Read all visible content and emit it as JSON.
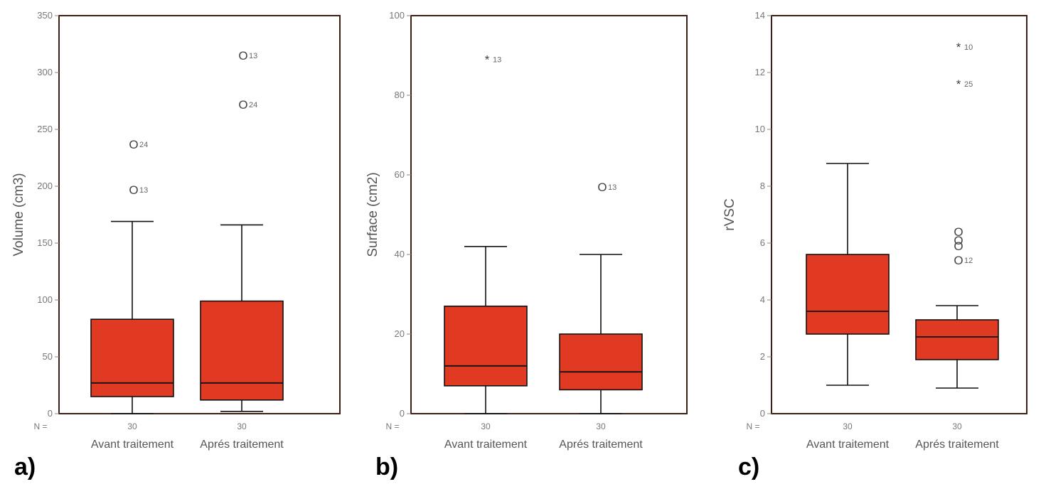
{
  "colors": {
    "box_fill": "#e03a22",
    "frame": "#3d1f14",
    "line": "#111111"
  },
  "chart_data": [
    {
      "type": "boxplot",
      "panel_label": "a)",
      "ylabel": "Volume (cm3)",
      "ylim": [
        0,
        350
      ],
      "yticks": [
        0,
        50,
        100,
        150,
        200,
        250,
        300,
        350
      ],
      "n_label": "N =",
      "categories": [
        "Avant traitement",
        "Aprés traitement"
      ],
      "boxes": [
        {
          "n": "30",
          "whisker_low": 0,
          "q1": 15,
          "median": 27,
          "q3": 83,
          "whisker_high": 169,
          "outliers": [
            {
              "value": 237,
              "label": "24",
              "marker": "O"
            },
            {
              "value": 197,
              "label": "13",
              "marker": "O"
            }
          ]
        },
        {
          "n": "30",
          "whisker_low": 2,
          "q1": 12,
          "median": 27,
          "q3": 99,
          "whisker_high": 166,
          "outliers": [
            {
              "value": 315,
              "label": "13",
              "marker": "O"
            },
            {
              "value": 272,
              "label": "24",
              "marker": "O"
            }
          ]
        }
      ]
    },
    {
      "type": "boxplot",
      "panel_label": "b)",
      "ylabel": "Surface (cm2)",
      "ylim": [
        0,
        100
      ],
      "yticks": [
        0,
        20,
        40,
        60,
        80,
        100
      ],
      "n_label": "N =",
      "categories": [
        "Avant traitement",
        "Aprés traitement"
      ],
      "boxes": [
        {
          "n": "30",
          "whisker_low": 0,
          "q1": 7,
          "median": 12,
          "q3": 27,
          "whisker_high": 42,
          "outliers": [
            {
              "value": 89,
              "label": "13",
              "marker": "*"
            }
          ]
        },
        {
          "n": "30",
          "whisker_low": 0,
          "q1": 6,
          "median": 10.5,
          "q3": 20,
          "whisker_high": 40,
          "outliers": [
            {
              "value": 57,
              "label": "13",
              "marker": "O"
            }
          ]
        }
      ]
    },
    {
      "type": "boxplot",
      "panel_label": "c)",
      "ylabel": "rVSC",
      "ylim": [
        0,
        14
      ],
      "yticks": [
        0,
        2,
        4,
        6,
        8,
        10,
        12,
        14
      ],
      "n_label": "N =",
      "categories": [
        "Avant traitement",
        "Aprés traitement"
      ],
      "boxes": [
        {
          "n": "30",
          "whisker_low": 1,
          "q1": 2.8,
          "median": 3.6,
          "q3": 5.6,
          "whisker_high": 8.8,
          "outliers": []
        },
        {
          "n": "30",
          "whisker_low": 0.9,
          "q1": 1.9,
          "median": 2.7,
          "q3": 3.3,
          "whisker_high": 3.8,
          "outliers": [
            {
              "value": 12.9,
              "label": "10",
              "marker": "*"
            },
            {
              "value": 11.6,
              "label": "25",
              "marker": "*"
            },
            {
              "value": 6.4,
              "label": "",
              "marker": "O"
            },
            {
              "value": 6.1,
              "label": "",
              "marker": "O"
            },
            {
              "value": 5.9,
              "label": "",
              "marker": "O"
            },
            {
              "value": 5.4,
              "label": "12",
              "marker": "O"
            }
          ]
        }
      ]
    }
  ]
}
